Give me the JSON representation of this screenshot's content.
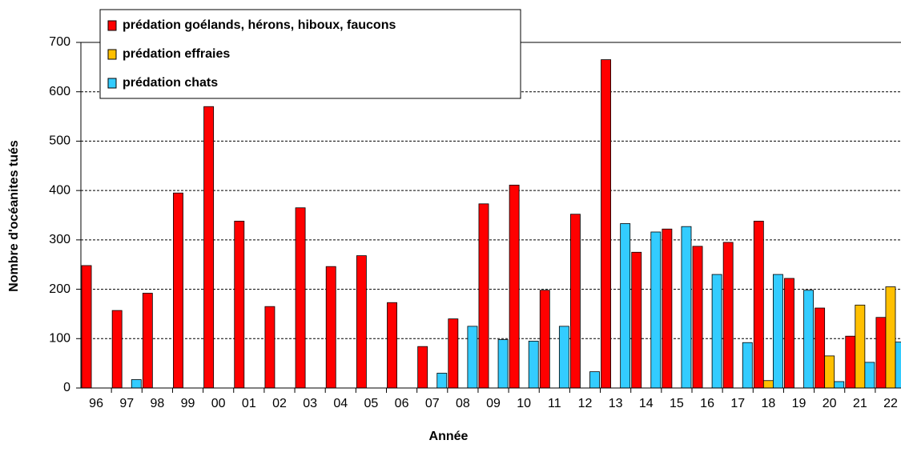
{
  "chart_data": {
    "type": "bar",
    "x_label": "Année",
    "y_label": "Nombre d'océanites tués",
    "categories": [
      "96",
      "97",
      "98",
      "99",
      "00",
      "01",
      "02",
      "03",
      "04",
      "05",
      "06",
      "07",
      "08",
      "09",
      "10",
      "11",
      "12",
      "13",
      "14",
      "15",
      "16",
      "17",
      "18",
      "19",
      "20",
      "21",
      "22"
    ],
    "series": [
      {
        "name": "prédation goélands, hérons, hiboux, faucons",
        "color": "#ff0000",
        "values": [
          248,
          157,
          192,
          395,
          570,
          338,
          165,
          365,
          246,
          268,
          173,
          84,
          140,
          373,
          411,
          198,
          352,
          665,
          275,
          322,
          287,
          295,
          338,
          222,
          162,
          105,
          143
        ]
      },
      {
        "name": "prédation effraies",
        "color": "#ffc000",
        "values": [
          null,
          null,
          null,
          null,
          null,
          null,
          null,
          null,
          null,
          null,
          null,
          null,
          null,
          null,
          null,
          null,
          null,
          null,
          null,
          null,
          null,
          null,
          15,
          null,
          65,
          168,
          205
        ]
      },
      {
        "name": "prédation chats",
        "color": "#33ccff",
        "values": [
          null,
          17,
          null,
          null,
          null,
          null,
          null,
          null,
          null,
          null,
          null,
          30,
          125,
          98,
          95,
          125,
          33,
          333,
          316,
          327,
          230,
          92,
          230,
          198,
          13,
          52,
          93
        ]
      }
    ],
    "ylim": [
      0,
      700
    ],
    "yticks": [
      0,
      100,
      200,
      300,
      400,
      500,
      600,
      700
    ],
    "grid": true,
    "legend": "top-left"
  }
}
